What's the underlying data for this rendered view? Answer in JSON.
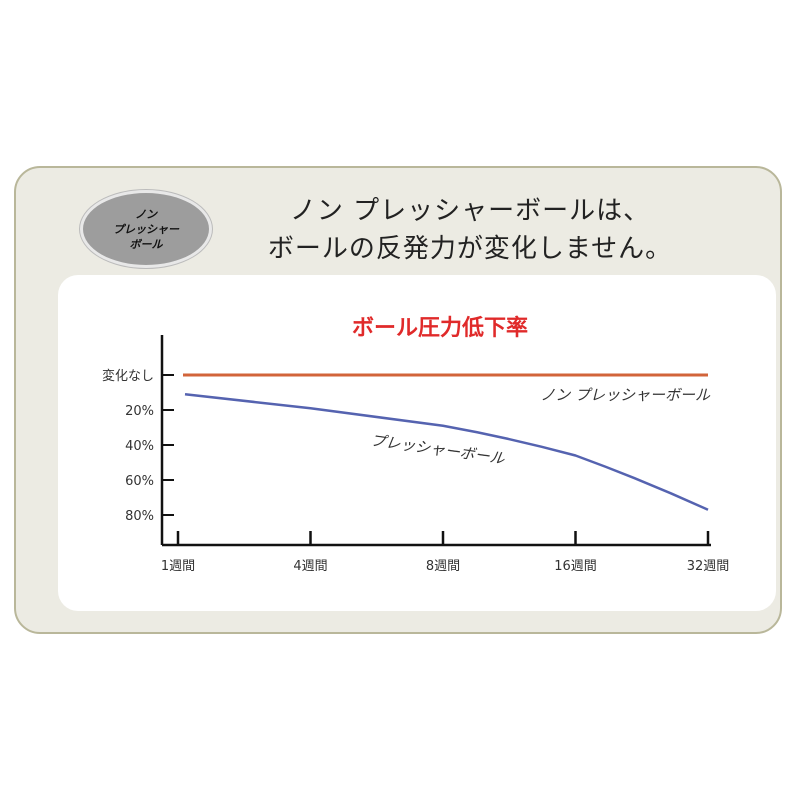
{
  "badge": {
    "text": "ノン\nプレッシャー\nボール"
  },
  "headline": {
    "line1": "ノン プレッシャーボールは、",
    "line2": "ボールの反発力が変化しません。"
  },
  "chart_data": {
    "type": "line",
    "title": "ボール圧力低下率",
    "categories": [
      "1週間",
      "4週間",
      "8週間",
      "16週間",
      "32週間"
    ],
    "yticks": [
      "変化なし",
      "20%",
      "40%",
      "60%",
      "80%"
    ],
    "ylim": [
      0,
      80
    ],
    "y_inverted": true,
    "series": [
      {
        "name": "ノン プレッシャーボール",
        "values": [
          0,
          0,
          0,
          0,
          0
        ],
        "color": "#d2643a"
      },
      {
        "name": "プレッシャーボール",
        "values": [
          11,
          19,
          29,
          46,
          77
        ],
        "color": "#5563b0"
      }
    ],
    "grid": false,
    "legend": "inline labels"
  }
}
